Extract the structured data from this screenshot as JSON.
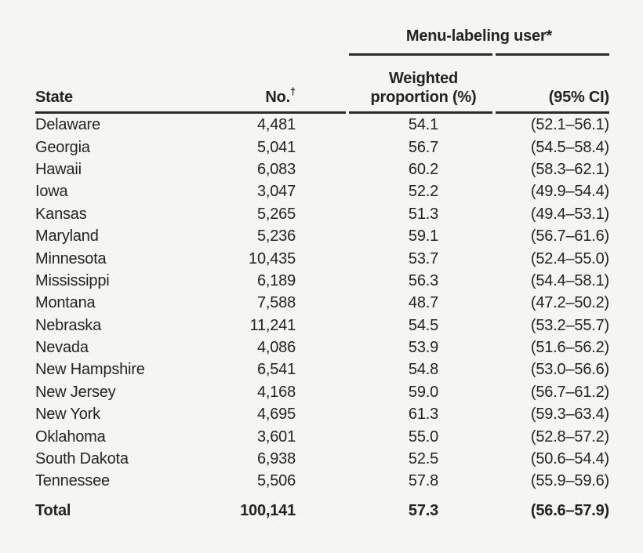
{
  "colors": {
    "background": "#f5f5f4",
    "text": "#232323",
    "rule": "#2b2b2b"
  },
  "table": {
    "spanner_header": "Menu-labeling user*",
    "columns": {
      "state": "State",
      "no": "No.",
      "no_sup": "†",
      "weighted_line1": "Weighted",
      "weighted_line2": "proportion (%)",
      "ci": "(95% CI)"
    },
    "rows": [
      {
        "state": "Delaware",
        "no": "4,481",
        "pct": "54.1",
        "ci": "(52.1–56.1)"
      },
      {
        "state": "Georgia",
        "no": "5,041",
        "pct": "56.7",
        "ci": "(54.5–58.4)"
      },
      {
        "state": "Hawaii",
        "no": "6,083",
        "pct": "60.2",
        "ci": "(58.3–62.1)"
      },
      {
        "state": "Iowa",
        "no": "3,047",
        "pct": "52.2",
        "ci": "(49.9–54.4)"
      },
      {
        "state": "Kansas",
        "no": "5,265",
        "pct": "51.3",
        "ci": "(49.4–53.1)"
      },
      {
        "state": "Maryland",
        "no": "5,236",
        "pct": "59.1",
        "ci": "(56.7–61.6)"
      },
      {
        "state": "Minnesota",
        "no": "10,435",
        "pct": "53.7",
        "ci": "(52.4–55.0)"
      },
      {
        "state": "Mississippi",
        "no": "6,189",
        "pct": "56.3",
        "ci": "(54.4–58.1)"
      },
      {
        "state": "Montana",
        "no": "7,588",
        "pct": "48.7",
        "ci": "(47.2–50.2)"
      },
      {
        "state": "Nebraska",
        "no": "11,241",
        "pct": "54.5",
        "ci": "(53.2–55.7)"
      },
      {
        "state": "Nevada",
        "no": "4,086",
        "pct": "53.9",
        "ci": "(51.6–56.2)"
      },
      {
        "state": "New Hampshire",
        "no": "6,541",
        "pct": "54.8",
        "ci": "(53.0–56.6)"
      },
      {
        "state": "New Jersey",
        "no": "4,168",
        "pct": "59.0",
        "ci": "(56.7–61.2)"
      },
      {
        "state": "New York",
        "no": "4,695",
        "pct": "61.3",
        "ci": "(59.3–63.4)"
      },
      {
        "state": "Oklahoma",
        "no": "3,601",
        "pct": "55.0",
        "ci": "(52.8–57.2)"
      },
      {
        "state": "South Dakota",
        "no": "6,938",
        "pct": "52.5",
        "ci": "(50.6–54.4)"
      },
      {
        "state": "Tennessee",
        "no": "5,506",
        "pct": "57.8",
        "ci": "(55.9–59.6)"
      }
    ],
    "total": {
      "state": "Total",
      "no": "100,141",
      "pct": "57.3",
      "ci": "(56.6–57.9)"
    }
  }
}
